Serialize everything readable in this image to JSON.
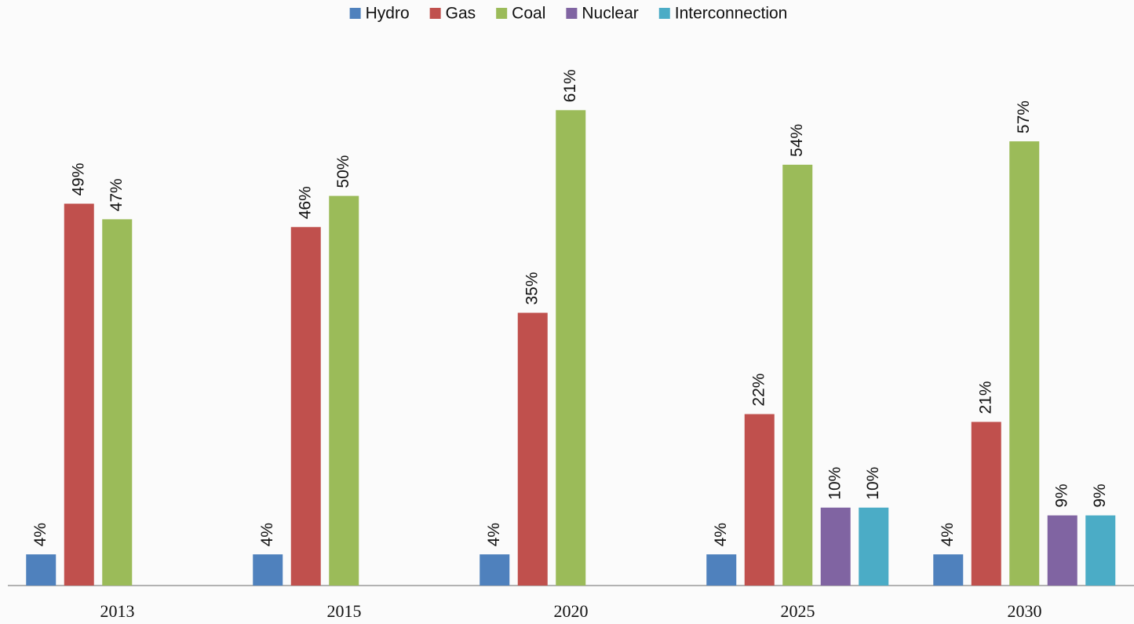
{
  "chart_data": {
    "type": "bar",
    "categories": [
      "2013",
      "2015",
      "2020",
      "2025",
      "2030"
    ],
    "series": [
      {
        "name": "Hydro",
        "color": "#4f81bd",
        "values": [
          4,
          4,
          4,
          4,
          4
        ],
        "value_labels": [
          "4%",
          "4%",
          "4%",
          "4%",
          "4%"
        ]
      },
      {
        "name": "Gas",
        "color": "#c0504d",
        "values": [
          49,
          46,
          35,
          22,
          21
        ],
        "value_labels": [
          "49%",
          "46%",
          "35%",
          "22%",
          "21%"
        ]
      },
      {
        "name": "Coal",
        "color": "#9bbb59",
        "values": [
          47,
          50,
          61,
          54,
          57
        ],
        "value_labels": [
          "47%",
          "50%",
          "61%",
          "54%",
          "57%"
        ]
      },
      {
        "name": "Nuclear",
        "color": "#8064a2",
        "values": [
          null,
          null,
          null,
          10,
          9
        ],
        "value_labels": [
          null,
          null,
          null,
          "10%",
          "9%"
        ]
      },
      {
        "name": "Interconnection",
        "color": "#4bacc6",
        "values": [
          null,
          null,
          null,
          10,
          9
        ],
        "value_labels": [
          null,
          null,
          null,
          "10%",
          "9%"
        ]
      }
    ],
    "ylim": [
      0,
      70
    ],
    "legend": "top"
  }
}
